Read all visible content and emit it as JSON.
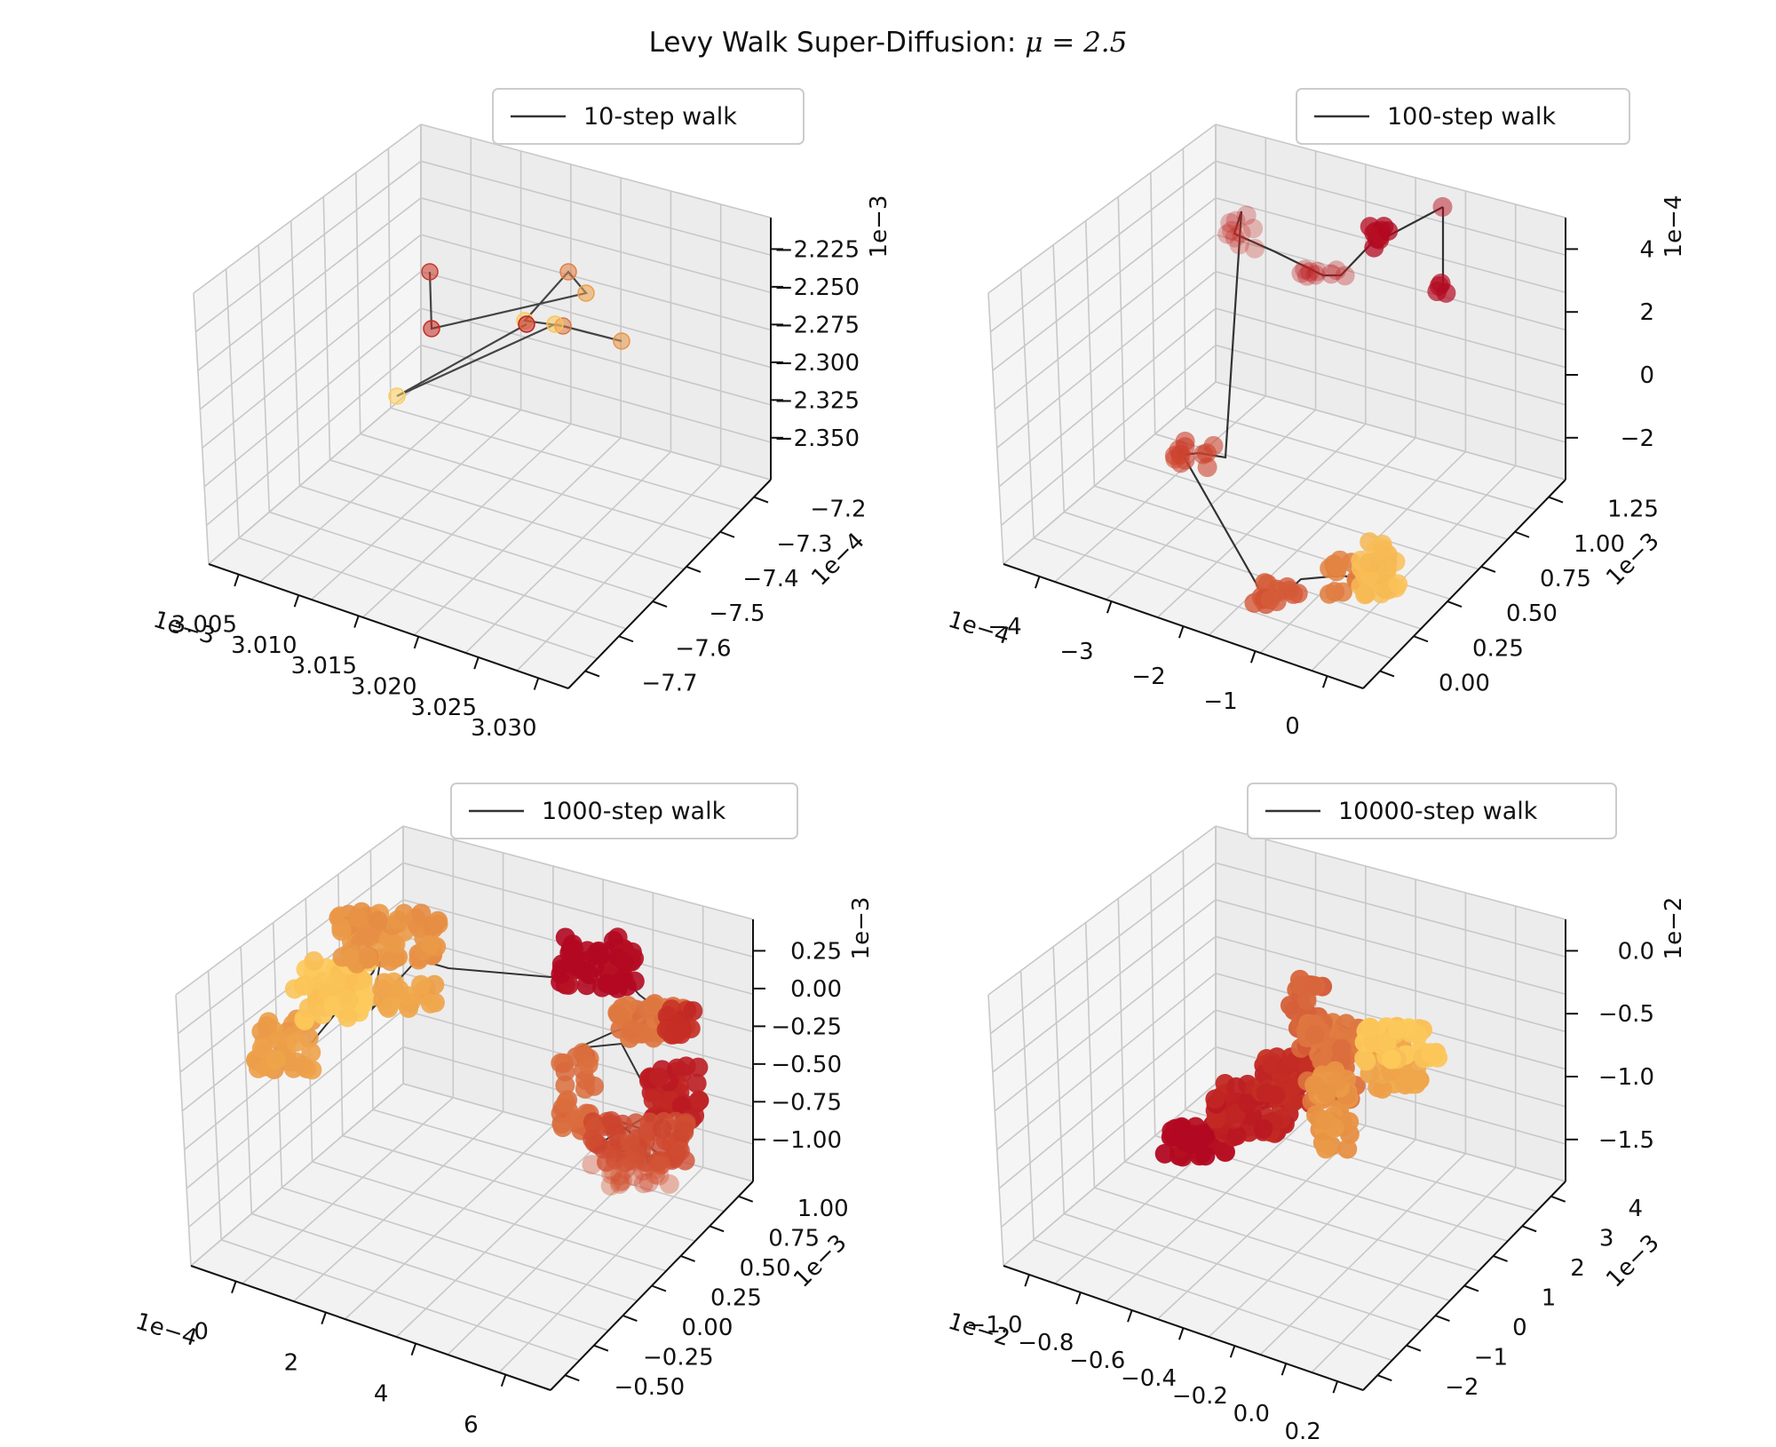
{
  "figure": {
    "title_prefix": "Levy Walk Super-Diffusion: ",
    "title_math": "μ = 2.5"
  },
  "chart_data": [
    {
      "type": "scatter",
      "subtype": "3d-scatter-with-path",
      "legend": "10-step walk",
      "x_tick_labels": [
        "3.005",
        "3.010",
        "3.015",
        "3.020",
        "3.025",
        "3.030"
      ],
      "x_offset": "1e−3",
      "y_tick_labels": [
        "−7.7",
        "−7.6",
        "−7.5",
        "−7.4",
        "−7.3",
        "−7.2"
      ],
      "y_offset": "1e−4",
      "z_tick_labels": [
        "−2.350",
        "−2.325",
        "−2.300",
        "−2.275",
        "−2.250",
        "−2.225"
      ],
      "z_offset": "1e−3",
      "colormap": "YlOrRd"
    },
    {
      "type": "scatter",
      "subtype": "3d-scatter-with-path",
      "legend": "100-step walk",
      "x_tick_labels": [
        "−4",
        "−3",
        "−2",
        "−1",
        "0"
      ],
      "x_offset": "1e−4",
      "y_tick_labels": [
        "0.00",
        "0.25",
        "0.50",
        "0.75",
        "1.00",
        "1.25"
      ],
      "y_offset": "1e−3",
      "z_tick_labels": [
        "−2",
        "0",
        "2",
        "4"
      ],
      "z_offset": "1e−4",
      "colormap": "YlOrRd"
    },
    {
      "type": "scatter",
      "subtype": "3d-scatter-with-path",
      "legend": "1000-step walk",
      "x_tick_labels": [
        "0",
        "2",
        "4",
        "6"
      ],
      "x_offset": "1e−4",
      "y_tick_labels": [
        "−0.50",
        "−0.25",
        "0.00",
        "0.25",
        "0.50",
        "0.75",
        "1.00"
      ],
      "y_offset": "1e−3",
      "z_tick_labels": [
        "−1.00",
        "−0.75",
        "−0.50",
        "−0.25",
        "0.00",
        "0.25"
      ],
      "z_offset": "1e−3",
      "colormap": "YlOrRd"
    },
    {
      "type": "scatter",
      "subtype": "3d-scatter-with-path",
      "legend": "10000-step walk",
      "x_tick_labels": [
        "−1.0",
        "−0.8",
        "−0.6",
        "−0.4",
        "−0.2",
        "0.0",
        "0.2"
      ],
      "x_offset": "1e−2",
      "y_tick_labels": [
        "−2",
        "−1",
        "0",
        "1",
        "2",
        "3",
        "4"
      ],
      "y_offset": "1e−3",
      "z_tick_labels": [
        "−1.5",
        "−1.0",
        "−0.5",
        "0.0"
      ],
      "z_offset": "1e−2",
      "colormap": "YlOrRd"
    }
  ]
}
